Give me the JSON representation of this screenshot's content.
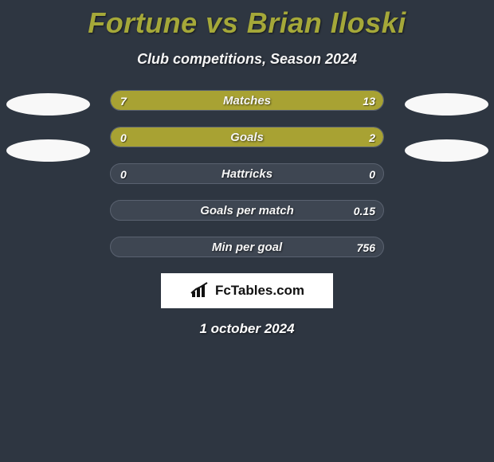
{
  "title": "Fortune vs Brian Iloski",
  "title_color": "#a5a839",
  "subtitle": "Club competitions, Season 2024",
  "background_color": "#2e3641",
  "bar_background": "#3e4652",
  "bar_border": "#5a6270",
  "fill_color": "#a8a233",
  "text_color": "#ffffff",
  "ellipse_color": "#f8f8f8",
  "left_ellipses": 2,
  "right_ellipses": 2,
  "bars": [
    {
      "label": "Matches",
      "left": "7",
      "right": "13",
      "left_pct": 35,
      "right_pct": 65
    },
    {
      "label": "Goals",
      "left": "0",
      "right": "2",
      "left_pct": 18,
      "right_pct": 82
    },
    {
      "label": "Hattricks",
      "left": "0",
      "right": "0",
      "left_pct": 0,
      "right_pct": 0
    },
    {
      "label": "Goals per match",
      "left": "",
      "right": "0.15",
      "left_pct": 0,
      "right_pct": 0
    },
    {
      "label": "Min per goal",
      "left": "",
      "right": "756",
      "left_pct": 0,
      "right_pct": 0
    }
  ],
  "logo_text": "FcTables.com",
  "date": "1 october 2024"
}
